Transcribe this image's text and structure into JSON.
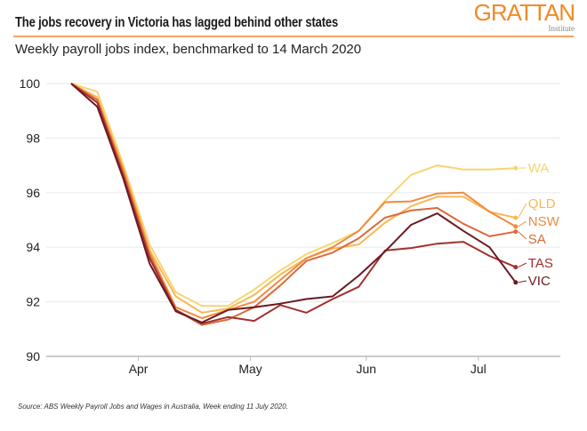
{
  "header": {
    "title": "The jobs recovery in Victoria has lagged behind other states",
    "subtitle": "Weekly payroll jobs index, benchmarked to 14 March 2020",
    "logo_main": "GRATTAN",
    "logo_sub": "Institute"
  },
  "footer": {
    "source": "Source: ABS Weekly Payroll Jobs and Wages in Australia, Week ending 11 July 2020."
  },
  "chart_data": {
    "type": "line",
    "title": "The jobs recovery in Victoria has lagged behind other states",
    "subtitle": "Weekly payroll jobs index, benchmarked to 14 March 2020",
    "xlabel": "",
    "ylabel": "",
    "ylim": [
      90,
      100
    ],
    "yticks": [
      "90",
      "92",
      "94",
      "96",
      "98",
      "100"
    ],
    "xticks": [
      {
        "label": "Apr",
        "date": "2020-04-01"
      },
      {
        "label": "May",
        "date": "2020-05-01"
      },
      {
        "label": "Jun",
        "date": "2020-06-01"
      },
      {
        "label": "Jul",
        "date": "2020-07-01"
      }
    ],
    "grid": "horizontal",
    "legend": "end-of-line labels",
    "x": [
      "2020-03-14",
      "2020-03-21",
      "2020-03-28",
      "2020-04-04",
      "2020-04-11",
      "2020-04-18",
      "2020-04-25",
      "2020-05-02",
      "2020-05-09",
      "2020-05-16",
      "2020-05-23",
      "2020-05-30",
      "2020-06-06",
      "2020-06-13",
      "2020-06-20",
      "2020-06-27",
      "2020-07-04",
      "2020-07-11"
    ],
    "series": [
      {
        "name": "WA",
        "color": "#F8D473",
        "values": [
          100,
          99.7,
          97.0,
          94.1,
          92.35,
          91.85,
          91.85,
          92.45,
          93.15,
          93.75,
          94.15,
          94.6,
          95.7,
          96.65,
          97.0,
          96.85,
          96.85,
          96.9
        ]
      },
      {
        "name": "QLD",
        "color": "#F7B955",
        "values": [
          100,
          99.5,
          96.9,
          93.9,
          92.2,
          91.6,
          91.75,
          92.25,
          93.0,
          93.6,
          93.95,
          94.1,
          94.9,
          95.5,
          95.85,
          95.85,
          95.3,
          95.08
        ]
      },
      {
        "name": "NSW",
        "color": "#F08A3C",
        "values": [
          100,
          99.4,
          96.8,
          93.8,
          91.8,
          91.4,
          91.7,
          92.0,
          92.8,
          93.6,
          94.0,
          94.6,
          95.65,
          95.68,
          95.97,
          96.0,
          95.3,
          94.76
        ]
      },
      {
        "name": "SA",
        "color": "#DA6A3A",
        "values": [
          100,
          99.4,
          96.7,
          93.7,
          91.7,
          91.15,
          91.35,
          91.8,
          92.6,
          93.5,
          93.8,
          94.33,
          95.08,
          95.35,
          95.44,
          94.86,
          94.4,
          94.57
        ]
      },
      {
        "name": "TAS",
        "color": "#A2302E",
        "values": [
          100,
          99.3,
          96.6,
          93.6,
          91.7,
          91.2,
          91.44,
          91.3,
          91.88,
          91.6,
          92.1,
          92.55,
          93.88,
          93.97,
          94.13,
          94.2,
          93.68,
          93.27
        ]
      },
      {
        "name": "VIC",
        "color": "#6B1A22",
        "values": [
          100,
          99.15,
          96.5,
          93.4,
          91.65,
          91.24,
          91.7,
          91.8,
          91.93,
          92.1,
          92.2,
          92.96,
          93.84,
          94.82,
          95.24,
          94.6,
          94.0,
          92.71
        ]
      }
    ]
  }
}
